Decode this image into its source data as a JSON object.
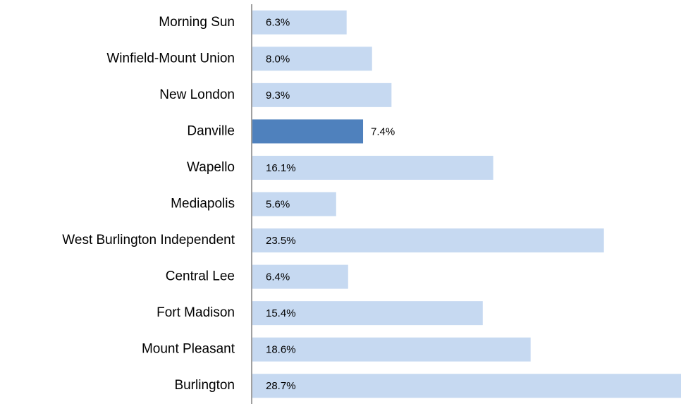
{
  "chart_data": {
    "type": "barh",
    "categories": [
      "Morning Sun",
      "Winfield-Mount Union",
      "New London",
      "Danville",
      "Wapello",
      "Mediapolis",
      "West Burlington Independent",
      "Central Lee",
      "Fort Madison",
      "Mount Pleasant",
      "Burlington"
    ],
    "values": [
      6.3,
      8.0,
      9.3,
      7.4,
      16.1,
      5.6,
      23.5,
      6.4,
      15.4,
      18.6,
      28.7
    ],
    "value_labels": [
      "6.3%",
      "8.0%",
      "9.3%",
      "7.4%",
      "16.1%",
      "5.6%",
      "23.5%",
      "6.4%",
      "15.4%",
      "18.6%",
      "28.7%"
    ],
    "colors": [
      "#c6d9f1",
      "#c6d9f1",
      "#c6d9f1",
      "#4f81bd",
      "#c6d9f1",
      "#c6d9f1",
      "#c6d9f1",
      "#c6d9f1",
      "#c6d9f1",
      "#c6d9f1",
      "#c6d9f1"
    ]
  }
}
